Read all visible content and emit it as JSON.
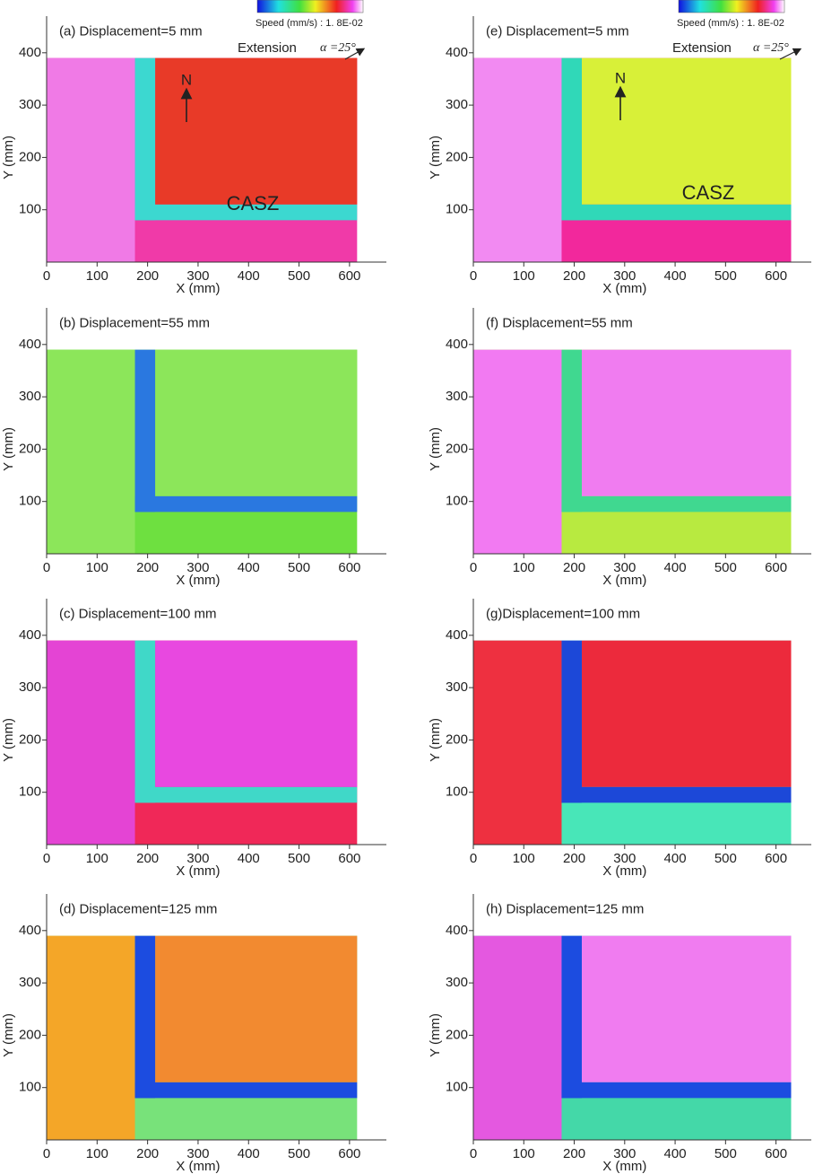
{
  "chart_data": [
    {
      "type": "heatmap",
      "title": "(a) Displacement=5 mm",
      "x_label": "X (mm)",
      "y_label": "Y (mm)",
      "xlim": [
        0,
        673
      ],
      "ylim": [
        0,
        470
      ],
      "xticks": [
        0,
        100,
        200,
        300,
        400,
        500,
        600
      ],
      "yticks": [
        100,
        200,
        300,
        400
      ],
      "colorbar_label": "Speed (mm/s) : 1. 8E-02",
      "annotations": [
        "Extension",
        "α =25°",
        "N",
        "CASZ"
      ],
      "colors": {
        "bottom": "#f03aa8",
        "left": "#f07ae6",
        "right": "#e83a28",
        "zone": "#3cd8d0"
      }
    },
    {
      "type": "heatmap",
      "title": "(b) Displacement=55 mm",
      "x_label": "X (mm)",
      "y_label": "Y (mm)",
      "xlim": [
        0,
        673
      ],
      "ylim": [
        0,
        470
      ],
      "xticks": [
        0,
        100,
        200,
        300,
        400,
        500,
        600
      ],
      "yticks": [
        100,
        200,
        300,
        400
      ],
      "colors": {
        "bottom": "#6ee040",
        "left": "#8ce65a",
        "right": "#8ce65a",
        "zone": "#2a78e0"
      }
    },
    {
      "type": "heatmap",
      "title": "(c) Displacement=100 mm",
      "x_label": "X (mm)",
      "y_label": "Y (mm)",
      "xlim": [
        0,
        673
      ],
      "ylim": [
        0,
        470
      ],
      "xticks": [
        0,
        100,
        200,
        300,
        400,
        500,
        600
      ],
      "yticks": [
        100,
        200,
        300,
        400
      ],
      "colors": {
        "bottom": "#f02858",
        "left": "#e444d4",
        "right": "#e848e0",
        "zone": "#40d8c8"
      }
    },
    {
      "type": "heatmap",
      "title": "(d) Displacement=125 mm",
      "x_label": "X (mm)",
      "y_label": "Y (mm)",
      "xlim": [
        0,
        673
      ],
      "ylim": [
        0,
        470
      ],
      "xticks": [
        0,
        100,
        200,
        300,
        400,
        500,
        600
      ],
      "yticks": [
        100,
        200,
        300,
        400
      ],
      "colors": {
        "bottom": "#78e27a",
        "left": "#f4a628",
        "right": "#f28a30",
        "zone": "#1c4ce0"
      }
    },
    {
      "type": "heatmap",
      "title": "(e) Displacement=5 mm",
      "x_label": "X (mm)",
      "y_label": "Y (mm)",
      "xlim": [
        0,
        670
      ],
      "ylim": [
        0,
        470
      ],
      "xticks": [
        0,
        100,
        200,
        300,
        400,
        500,
        600
      ],
      "yticks": [
        100,
        200,
        300,
        400
      ],
      "colorbar_label": "Speed (mm/s) : 1. 8E-02",
      "annotations": [
        "Extension",
        "α =25°",
        "N",
        "CASZ"
      ],
      "colors": {
        "bottom": "#f2289c",
        "left": "#f28af2",
        "right": "#d8f038",
        "zone": "#30d8b8"
      }
    },
    {
      "type": "heatmap",
      "title": "(f) Displacement=55 mm",
      "x_label": "X (mm)",
      "y_label": "Y (mm)",
      "xlim": [
        0,
        670
      ],
      "ylim": [
        0,
        470
      ],
      "xticks": [
        0,
        100,
        200,
        300,
        400,
        500,
        600
      ],
      "yticks": [
        100,
        200,
        300,
        400
      ],
      "colors": {
        "bottom": "#b8ea40",
        "left": "#f27af2",
        "right": "#f07cf0",
        "zone": "#40d890"
      }
    },
    {
      "type": "heatmap",
      "title": "(g)Displacement=100 mm",
      "x_label": "X (mm)",
      "y_label": "Y (mm)",
      "xlim": [
        0,
        670
      ],
      "ylim": [
        0,
        470
      ],
      "xticks": [
        0,
        100,
        200,
        300,
        400,
        500,
        600
      ],
      "yticks": [
        100,
        200,
        300,
        400
      ],
      "colors": {
        "bottom": "#48e6b8",
        "left": "#ee3040",
        "right": "#ec2a3c",
        "zone": "#1c48d8"
      }
    },
    {
      "type": "heatmap",
      "title": "(h) Displacement=125 mm",
      "x_label": "X (mm)",
      "y_label": "Y (mm)",
      "xlim": [
        0,
        670
      ],
      "ylim": [
        0,
        470
      ],
      "xticks": [
        0,
        100,
        200,
        300,
        400,
        500,
        600
      ],
      "yticks": [
        100,
        200,
        300,
        400
      ],
      "colors": {
        "bottom": "#44d8a8",
        "left": "#e458e0",
        "right": "#f07cf0",
        "zone": "#1c4ce0"
      }
    }
  ]
}
